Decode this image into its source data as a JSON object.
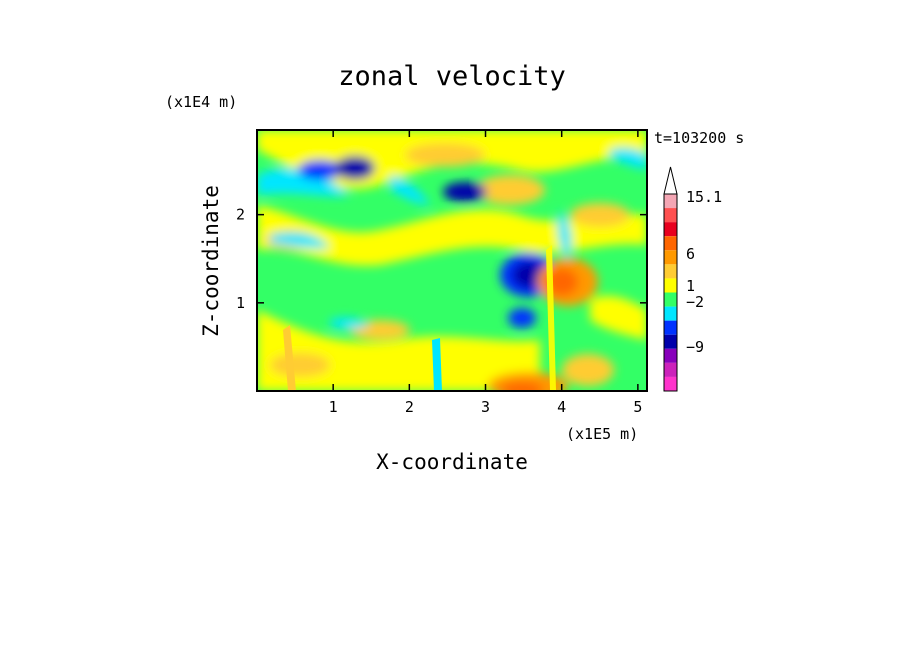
{
  "chart_data": {
    "type": "heatmap",
    "title": "zonal velocity",
    "time_label": "t=103200 s",
    "xlabel": "X-coordinate",
    "ylabel": "Z-coordinate",
    "x_scale_label": "(x1E5 m)",
    "y_scale_label": "(x1E4 m)",
    "xlim": [
      0.0,
      5.12
    ],
    "ylim": [
      0.0,
      2.96
    ],
    "xticks": [
      1,
      2,
      3,
      4,
      5
    ],
    "yticks": [
      1,
      2
    ],
    "xtick_labels": [
      "1",
      "2",
      "3",
      "4",
      "5"
    ],
    "ytick_labels": [
      "1",
      "2"
    ],
    "colorbar": {
      "levels": [
        15.1,
        6,
        1,
        -2,
        -9
      ],
      "level_labels": [
        "15.1",
        "6",
        "1",
        "−2",
        "−9"
      ],
      "colors": [
        "#f4a6b4",
        "#ff5050",
        "#e8001e",
        "#ff6600",
        "#ff9900",
        "#ffcc33",
        "#ffff00",
        "#33ff66",
        "#00e6ff",
        "#0033ff",
        "#0000aa",
        "#8800bb",
        "#cc22bb",
        "#ff33cc"
      ],
      "max_arrow": true
    },
    "regions": [
      {
        "x": [
          0,
          5.12
        ],
        "z": [
          0,
          2.96
        ],
        "value": 0
      },
      {
        "x": [
          0.7,
          1.3
        ],
        "z": [
          2.45,
          2.8
        ],
        "value": -5
      },
      {
        "x": [
          2.3,
          2.8
        ],
        "z": [
          2.2,
          2.4
        ],
        "value": -8
      },
      {
        "x": [
          3.2,
          3.85
        ],
        "z": [
          1.1,
          1.6
        ],
        "value": -9
      },
      {
        "x": [
          3.3,
          3.7
        ],
        "z": [
          0.65,
          0.9
        ],
        "value": -6
      },
      {
        "x": [
          3.85,
          4.25
        ],
        "z": [
          1.05,
          1.45
        ],
        "value": 8
      },
      {
        "x": [
          3.0,
          3.9
        ],
        "z": [
          0.02,
          0.2
        ],
        "value": 4
      },
      {
        "x": [
          2.6,
          3.6
        ],
        "z": [
          1.8,
          2.3
        ],
        "value": 2
      },
      {
        "x": [
          0.0,
          5.12
        ],
        "z": [
          0.0,
          0.5
        ],
        "value": 1.5
      }
    ]
  }
}
